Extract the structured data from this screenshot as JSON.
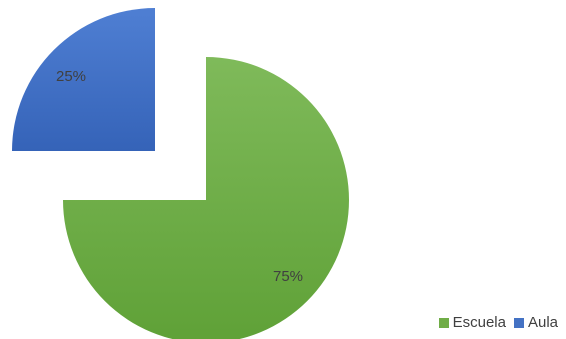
{
  "chart_data": {
    "type": "pie",
    "series": [
      {
        "name": "Escuela",
        "value": 75,
        "label": "75%",
        "color": "#70AD47"
      },
      {
        "name": "Aula",
        "value": 25,
        "label": "25%",
        "color": "#4472C4"
      }
    ],
    "legend_position": "bottom-right",
    "style": "exploded"
  }
}
